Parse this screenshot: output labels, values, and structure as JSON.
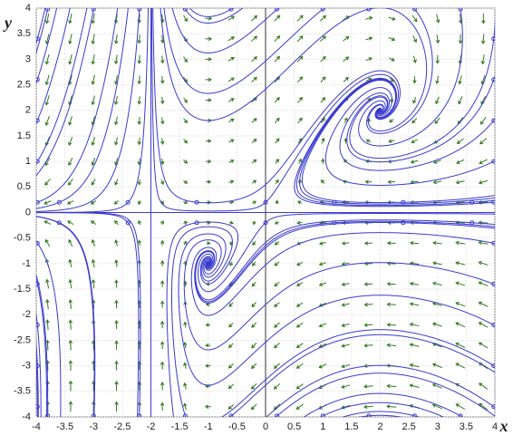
{
  "chart_data": {
    "type": "vector-field",
    "xlabel": "x",
    "ylabel": "y",
    "xlim": [
      -4,
      4
    ],
    "ylim": [
      -4,
      4
    ],
    "xticks": [
      -4,
      -3.5,
      -3,
      -2.5,
      -2,
      -1.5,
      -1,
      -0.5,
      0,
      0.5,
      1,
      1.5,
      2,
      2.5,
      3,
      3.5,
      4
    ],
    "yticks": [
      -4,
      -3.5,
      -3,
      -2.5,
      -2,
      -1.5,
      -1,
      -0.5,
      0,
      0.5,
      1,
      1.5,
      2,
      2.5,
      3,
      3.5,
      4
    ],
    "grid": true,
    "curve_color": "#3a3ad0",
    "arrow_color": "#2f7a1f"
  }
}
